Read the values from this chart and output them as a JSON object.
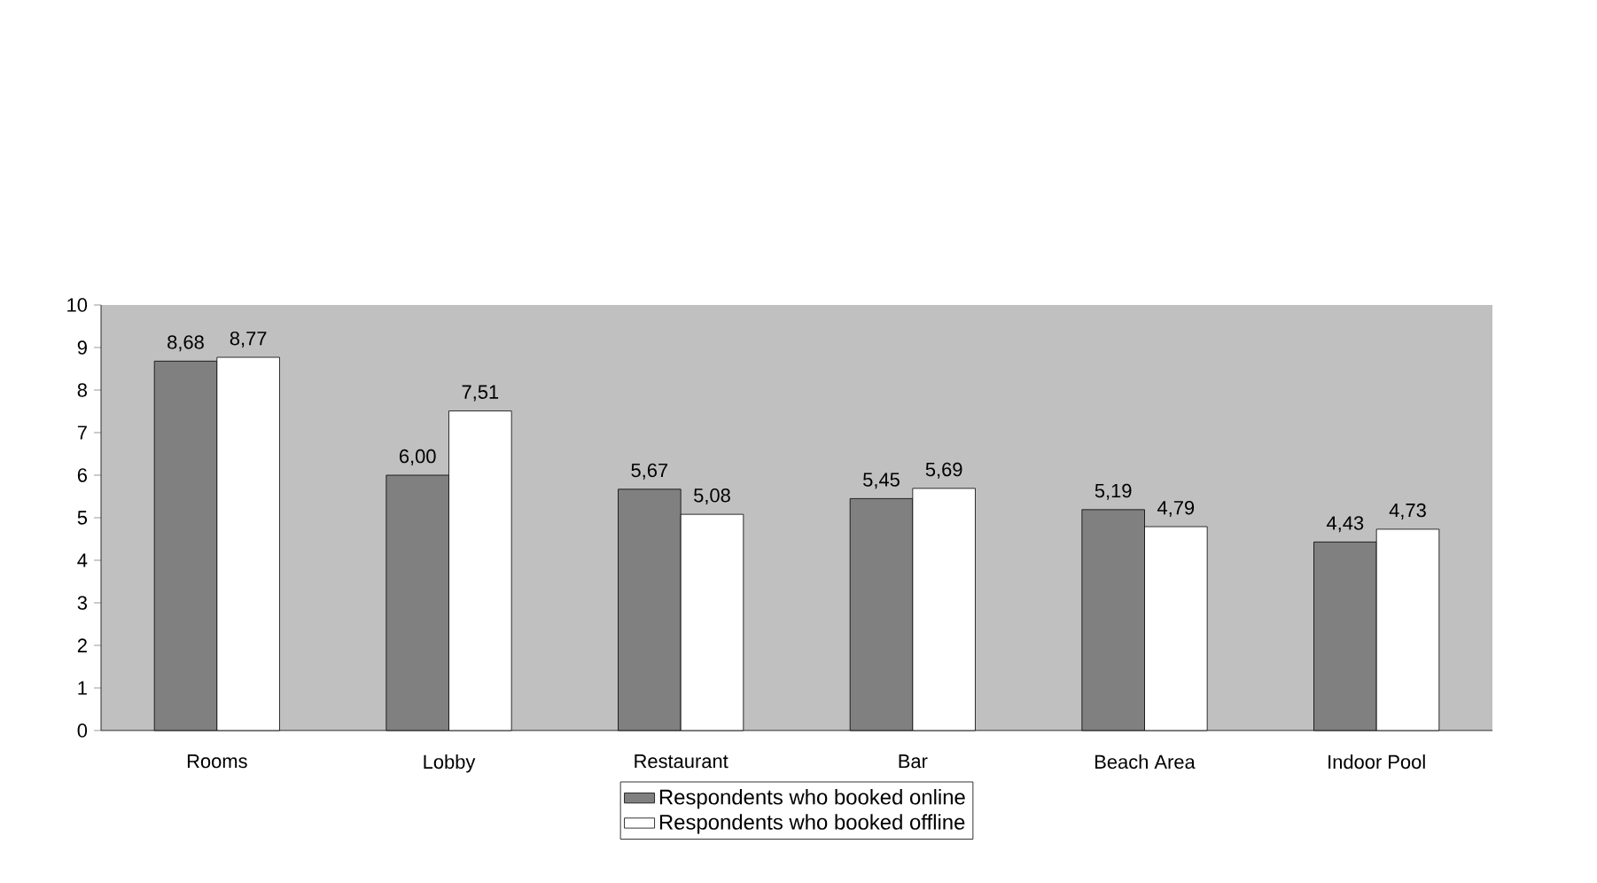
{
  "chart_data": {
    "type": "bar",
    "categories": [
      "Rooms",
      "Lobby",
      "Restaurant",
      "Bar",
      "Beach Area",
      "Indoor Pool"
    ],
    "series": [
      {
        "name": "Respondents who booked online",
        "color": "#808080",
        "values": [
          8.68,
          6.0,
          5.67,
          5.45,
          5.19,
          4.43
        ],
        "value_labels": [
          "8,68",
          "6,00",
          "5,67",
          "5,45",
          "5,19",
          "4,43"
        ]
      },
      {
        "name": "Respondents who booked offline",
        "color": "#ffffff",
        "values": [
          8.77,
          7.51,
          5.08,
          5.69,
          4.79,
          4.73
        ],
        "value_labels": [
          "8,77",
          "7,51",
          "5,08",
          "5,69",
          "4,79",
          "4,73"
        ]
      }
    ],
    "ylim": [
      0,
      10
    ],
    "yticks": [
      0,
      1,
      2,
      3,
      4,
      5,
      6,
      7,
      8,
      9,
      10
    ],
    "grid": false,
    "legend": "bottom"
  }
}
